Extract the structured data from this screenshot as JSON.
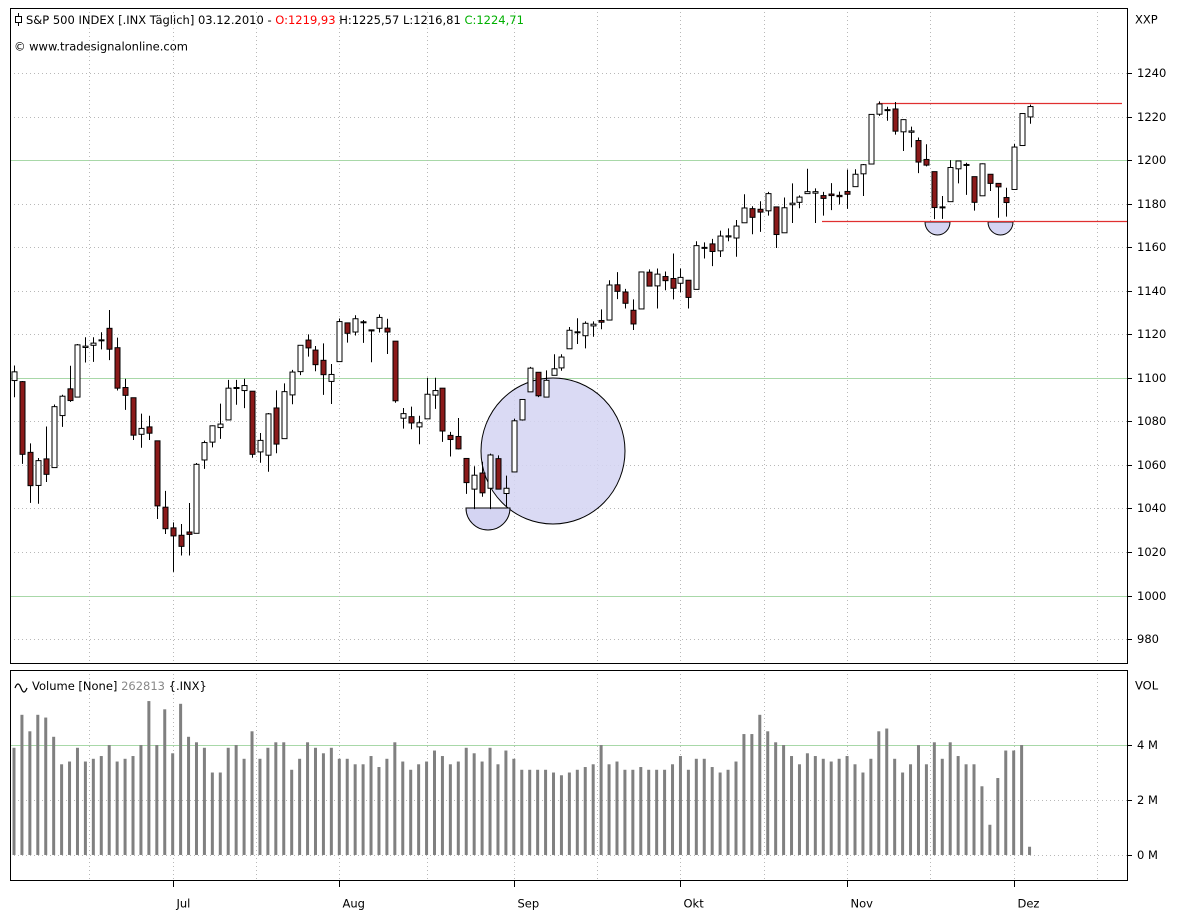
{
  "chart_data": [
    {
      "type": "candlestick",
      "title": "S&P 500 INDEX [.INX Täglich] 03.12.2010 -",
      "ohlc_labels": [
        "O:1219,93",
        "H:1225,57",
        "L:1216,81",
        "C:1224,71"
      ],
      "subtitle": "© www.tradesignalonline.com",
      "axis_label": "XXP",
      "categories": [
        null,
        null,
        null,
        null,
        null,
        null,
        null,
        null,
        null,
        null,
        null,
        null,
        null,
        null,
        null,
        null,
        null,
        null,
        null,
        null,
        "Jul",
        null,
        null,
        null,
        null,
        null,
        null,
        null,
        null,
        null,
        null,
        null,
        null,
        null,
        null,
        null,
        null,
        null,
        null,
        null,
        null,
        "Aug",
        null,
        null,
        null,
        null,
        null,
        null,
        null,
        null,
        null,
        null,
        null,
        null,
        null,
        null,
        null,
        null,
        null,
        null,
        null,
        null,
        null,
        "Sep",
        null,
        null,
        null,
        null,
        null,
        null,
        null,
        null,
        null,
        null,
        null,
        null,
        null,
        null,
        null,
        null,
        null,
        null,
        null,
        null,
        "Okt",
        null,
        null,
        null,
        null,
        null,
        null,
        null,
        null,
        null,
        null,
        null,
        null,
        null,
        null,
        null,
        null,
        null,
        null,
        null,
        null,
        "Nov",
        null,
        null,
        null,
        null,
        null,
        null,
        null,
        null,
        null,
        null,
        null,
        null,
        null,
        null,
        null,
        null,
        null,
        null,
        null,
        null,
        "Dez",
        null,
        null
      ],
      "open": [
        1098.8,
        1098.3,
        1065.8,
        1050.6,
        1062.8,
        1058.8,
        1082.7,
        1095.0,
        1091.2,
        1114.0,
        1115.0,
        1117.1,
        1122.8,
        1113.9,
        1095.6,
        1090.9,
        1074.1,
        1077.5,
        1071.1,
        1040.6,
        1031.1,
        1027.7,
        1029.2,
        1028.6,
        1062.3,
        1070.5,
        1077.2,
        1080.7,
        1095.6,
        1094.2,
        1093.9,
        1066.0,
        1064.5,
        1086.2,
        1072.1,
        1092.2,
        1102.9,
        1117.4,
        1112.8,
        1108.1,
        1098.4,
        1107.5,
        1125.3,
        1121.1,
        1125.6,
        1122.1,
        1122.8,
        1122.9,
        1116.9,
        1081.5,
        1082.2,
        1077.5,
        1081.2,
        1092.1,
        1095.3,
        1073.6,
        1073.1,
        1063.0,
        1048.9,
        1056.3,
        1049.3,
        1062.9,
        1046.9,
        1056.8,
        1080.7,
        1093.6,
        1102.6,
        1091.2,
        1101.2,
        1104.6,
        1113.4,
        1121.2,
        1119.4,
        1123.9,
        1126.4,
        1126.6,
        1142.8,
        1139.5,
        1131.1,
        1131.7,
        1148.6,
        1142.3,
        1146.6,
        1145.7,
        1143.5,
        1144.9,
        1140.7,
        1159.8,
        1161.6,
        1158.4,
        1164.8,
        1164.3,
        1171.3,
        1177.8,
        1177.5,
        1176.8,
        1178.6,
        1166.7,
        1179.6,
        1180.7,
        1184.7,
        1184.9,
        1183.8,
        1184.5,
        1183.9,
        1185.7,
        1187.9,
        1193.8,
        1198.3,
        1221.2,
        1222.9,
        1223.6,
        1213.1,
        1212.9,
        1209.1,
        1200.4,
        1194.8,
        1178.2,
        1181.0,
        1196.1,
        1198.1,
        1192.5,
        1183.7,
        1193.6,
        1189.4,
        1182.9,
        1186.6,
        1206.8,
        1219.93
      ],
      "high": [
        1105.7,
        1098.6,
        1069.9,
        1063.2,
        1077.7,
        1087.8,
        1092.3,
        1105.6,
        1115.6,
        1118.7,
        1118.7,
        1121.0,
        1131.2,
        1118.5,
        1099.6,
        1090.9,
        1083.6,
        1082.6,
        1071.1,
        1048.1,
        1033.6,
        1032.9,
        1042.5,
        1060.9,
        1071.2,
        1078.2,
        1088.2,
        1099.1,
        1099.1,
        1099.6,
        1093.9,
        1074.7,
        1083.9,
        1094.3,
        1097.5,
        1103.7,
        1115.0,
        1120.0,
        1114.7,
        1115.9,
        1106.4,
        1127.3,
        1125.4,
        1128.8,
        1126.6,
        1122.1,
        1129.2,
        1127.2,
        1116.9,
        1086.2,
        1086.8,
        1082.6,
        1100.1,
        1100.1,
        1095.3,
        1075.2,
        1081.6,
        1063.0,
        1059.4,
        1061.5,
        1065.2,
        1064.4,
        1055.1,
        1081.3,
        1090.1,
        1105.1,
        1102.6,
        1103.5,
        1110.9,
        1110.9,
        1123.4,
        1127.4,
        1126.0,
        1126.0,
        1131.5,
        1144.9,
        1148.6,
        1140.9,
        1136.1,
        1148.9,
        1149.9,
        1150.3,
        1148.9,
        1157.2,
        1150.3,
        1144.9,
        1162.8,
        1162.3,
        1163.9,
        1167.7,
        1168.7,
        1172.6,
        1184.4,
        1178.9,
        1181.2,
        1185.5,
        1178.6,
        1182.9,
        1189.4,
        1183.9,
        1196.1,
        1187.1,
        1185.5,
        1189.5,
        1185.6,
        1195.8,
        1195.9,
        1198.3,
        1221.3,
        1227.1,
        1224.6,
        1226.8,
        1218.8,
        1215.5,
        1210.5,
        1207.4,
        1194.8,
        1183.6,
        1200.1,
        1199.9,
        1198.9,
        1192.5,
        1198.6,
        1193.6,
        1189.4,
        1187.4,
        1207.6,
        1221.6,
        1225.57
      ],
      "low": [
        1091.1,
        1060.5,
        1042.6,
        1042.2,
        1052.2,
        1058.8,
        1077.5,
        1089.0,
        1091.2,
        1107.1,
        1107.4,
        1113.1,
        1108.2,
        1094.2,
        1085.3,
        1071.5,
        1067.9,
        1071.5,
        1035.2,
        1028.3,
        1010.9,
        1018.4,
        1018.4,
        1028.6,
        1058.2,
        1068.1,
        1072.0,
        1080.7,
        1087.7,
        1086.1,
        1063.3,
        1061.0,
        1056.9,
        1065.4,
        1072.1,
        1087.9,
        1101.3,
        1109.8,
        1103.1,
        1092.2,
        1088.0,
        1107.5,
        1116.2,
        1119.5,
        1116.1,
        1107.2,
        1120.9,
        1111.0,
        1088.6,
        1076.7,
        1076.4,
        1069.5,
        1081.2,
        1085.8,
        1070.6,
        1063.9,
        1067.1,
        1046.7,
        1039.7,
        1045.4,
        1039.7,
        1048.8,
        1040.9,
        1056.8,
        1080.4,
        1093.6,
        1091.2,
        1091.2,
        1101.2,
        1103.3,
        1113.4,
        1115.6,
        1113.6,
        1118.9,
        1122.4,
        1126.6,
        1136.2,
        1131.9,
        1122.0,
        1131.7,
        1142.0,
        1131.9,
        1140.3,
        1136.1,
        1139.4,
        1131.9,
        1140.7,
        1154.9,
        1151.4,
        1155.6,
        1162.8,
        1155.7,
        1171.3,
        1166.0,
        1167.1,
        1174.6,
        1159.7,
        1166.7,
        1171.2,
        1178.0,
        1184.7,
        1171.2,
        1174.6,
        1177.1,
        1179.7,
        1177.7,
        1187.9,
        1183.6,
        1198.3,
        1220.4,
        1218.2,
        1211.8,
        1204.3,
        1206.0,
        1194.1,
        1197.2,
        1173.0,
        1173.1,
        1181.0,
        1189.4,
        1184.1,
        1176.9,
        1183.7,
        1185.9,
        1173.6,
        1174.1,
        1186.6,
        1206.8,
        1216.81
      ],
      "close": [
        1102.8,
        1064.9,
        1050.5,
        1062.0,
        1055.7,
        1086.8,
        1091.6,
        1089.6,
        1115.2,
        1114.6,
        1116.0,
        1117.5,
        1113.2,
        1095.3,
        1092.0,
        1073.7,
        1076.8,
        1074.6,
        1041.2,
        1030.7,
        1027.4,
        1022.6,
        1028.1,
        1060.3,
        1070.3,
        1078.0,
        1078.8,
        1095.3,
        1095.2,
        1096.5,
        1064.9,
        1071.3,
        1083.5,
        1069.6,
        1093.7,
        1102.7,
        1115.0,
        1113.8,
        1106.1,
        1101.5,
        1101.6,
        1125.9,
        1120.5,
        1127.2,
        1125.8,
        1121.6,
        1127.8,
        1121.1,
        1089.5,
        1083.6,
        1079.3,
        1079.4,
        1092.5,
        1094.2,
        1075.6,
        1071.7,
        1067.4,
        1051.9,
        1055.3,
        1047.2,
        1064.6,
        1048.9,
        1049.3,
        1080.3,
        1090.1,
        1104.5,
        1091.8,
        1098.9,
        1104.2,
        1109.6,
        1121.9,
        1121.1,
        1125.1,
        1124.7,
        1125.6,
        1142.7,
        1139.8,
        1134.3,
        1124.8,
        1148.7,
        1142.2,
        1147.7,
        1144.7,
        1141.2,
        1146.2,
        1137.0,
        1160.8,
        1160.0,
        1158.1,
        1165.2,
        1165.3,
        1169.8,
        1178.1,
        1173.8,
        1176.2,
        1184.7,
        1165.9,
        1178.2,
        1180.3,
        1183.1,
        1185.6,
        1185.6,
        1182.5,
        1183.8,
        1183.3,
        1184.4,
        1193.6,
        1198.0,
        1221.1,
        1225.9,
        1223.3,
        1213.4,
        1218.7,
        1213.5,
        1199.2,
        1197.8,
        1178.3,
        1178.6,
        1196.7,
        1199.7,
        1197.8,
        1180.7,
        1198.4,
        1189.4,
        1187.8,
        1180.6,
        1206.1,
        1221.5,
        1224.71
      ],
      "up_color": "#ffffff",
      "down_color": "#8b1a1a",
      "ylim": [
        969,
        1270
      ],
      "yticks": [
        980,
        1000,
        1020,
        1040,
        1060,
        1080,
        1100,
        1120,
        1140,
        1160,
        1180,
        1200,
        1220,
        1240
      ],
      "grid": true,
      "grid_major": [
        1000,
        1100,
        1200
      ],
      "grid_major_color": "#a8d8a8"
    },
    {
      "type": "bar",
      "title": "Volume [None]",
      "last_value_label": "262813",
      "symbol": "{.INX}",
      "axis_label": "VOL",
      "values": [
        3.9,
        5.1,
        4.5,
        5.1,
        5.0,
        4.3,
        3.3,
        3.4,
        3.9,
        3.4,
        3.5,
        3.6,
        4.0,
        3.4,
        3.5,
        3.6,
        4.0,
        5.6,
        4.0,
        5.3,
        3.7,
        5.5,
        4.3,
        4.1,
        3.9,
        3.0,
        3.0,
        3.9,
        4.0,
        3.5,
        4.5,
        3.5,
        3.9,
        4.1,
        4.1,
        3.1,
        3.5,
        4.1,
        3.9,
        3.7,
        3.9,
        3.5,
        3.5,
        3.3,
        3.3,
        3.6,
        3.2,
        3.5,
        4.1,
        3.4,
        3.1,
        3.3,
        3.4,
        3.8,
        3.6,
        3.3,
        3.4,
        3.9,
        3.7,
        3.4,
        3.9,
        3.3,
        3.8,
        3.5,
        3.1,
        3.1,
        3.1,
        3.1,
        3.0,
        2.9,
        3.0,
        3.1,
        3.2,
        3.3,
        4.0,
        3.3,
        3.4,
        3.1,
        3.1,
        3.2,
        3.1,
        3.1,
        3.1,
        3.3,
        3.6,
        3.1,
        3.5,
        3.5,
        3.2,
        3.0,
        3.1,
        3.4,
        4.4,
        4.4,
        5.1,
        4.5,
        4.1,
        4.0,
        3.6,
        3.3,
        3.7,
        3.6,
        3.5,
        3.4,
        3.5,
        3.6,
        3.3,
        3.0,
        3.5,
        4.5,
        4.6,
        3.5,
        3.0,
        3.3,
        4.0,
        3.3,
        4.1,
        3.5,
        4.1,
        3.6,
        3.3,
        3.3,
        2.5,
        1.1,
        2.8,
        3.8,
        3.8,
        4.0,
        0.3
      ],
      "color": "#808080",
      "ylim": [
        -0.91,
        6.73
      ],
      "yticks": [
        {
          "value": 0,
          "label": "0 M"
        },
        {
          "value": 2,
          "label": "2 M"
        },
        {
          "value": 4,
          "label": "4 M"
        }
      ],
      "grid": true,
      "grid_major": [
        4
      ],
      "grid_major_color": "#a8d8a8"
    }
  ]
}
